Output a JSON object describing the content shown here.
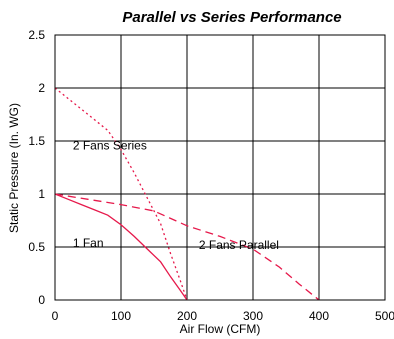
{
  "chart_data": {
    "type": "line",
    "title": "Parallel vs Series Performance",
    "xlabel": "Air Flow (CFM)",
    "ylabel": "Static Pressure (In. WG)",
    "xlim": [
      0,
      500
    ],
    "ylim": [
      0,
      2.5
    ],
    "x_ticks": [
      0,
      100,
      200,
      300,
      400,
      500
    ],
    "y_ticks": [
      0,
      0.5,
      1,
      1.5,
      2,
      2.5
    ],
    "x_tick_labels": [
      "0",
      "100",
      "200",
      "300",
      "400",
      "500"
    ],
    "y_tick_labels": [
      "0",
      "0.5",
      "1",
      "1.5",
      "2",
      "2.5"
    ],
    "grid": true,
    "legend": "inline labels",
    "colors": {
      "series": "#e6194b",
      "grid": "#000000",
      "text": "#000000"
    },
    "series": [
      {
        "name": "1 Fan",
        "style": "solid",
        "points": [
          [
            0,
            1.0
          ],
          [
            20,
            0.95
          ],
          [
            40,
            0.9
          ],
          [
            60,
            0.85
          ],
          [
            80,
            0.8
          ],
          [
            100,
            0.71
          ],
          [
            120,
            0.6
          ],
          [
            140,
            0.48
          ],
          [
            160,
            0.36
          ],
          [
            175,
            0.22
          ],
          [
            190,
            0.09
          ],
          [
            200,
            0.0
          ]
        ]
      },
      {
        "name": "2 Fans Series",
        "style": "dotted",
        "points": [
          [
            0,
            2.0
          ],
          [
            20,
            1.9
          ],
          [
            40,
            1.8
          ],
          [
            60,
            1.7
          ],
          [
            80,
            1.6
          ],
          [
            100,
            1.42
          ],
          [
            120,
            1.2
          ],
          [
            140,
            0.96
          ],
          [
            160,
            0.72
          ],
          [
            175,
            0.44
          ],
          [
            190,
            0.18
          ],
          [
            200,
            0.0
          ]
        ]
      },
      {
        "name": "2 Fans Parallel",
        "style": "dashed",
        "points": [
          [
            0,
            1.0
          ],
          [
            50,
            0.95
          ],
          [
            100,
            0.9
          ],
          [
            150,
            0.84
          ],
          [
            200,
            0.7
          ],
          [
            250,
            0.6
          ],
          [
            300,
            0.48
          ],
          [
            340,
            0.31
          ],
          [
            370,
            0.15
          ],
          [
            400,
            0.0
          ]
        ]
      }
    ],
    "annotations": [
      {
        "series": "2 Fans Series",
        "text": "2 Fans Series",
        "x": 27,
        "y": 1.42
      },
      {
        "series": "1 Fan",
        "text": "1 Fan",
        "x": 27,
        "y": 0.5
      },
      {
        "series": "2 Fans Parallel",
        "text": "2 Fans Parallel",
        "x": 218,
        "y": 0.48
      }
    ]
  }
}
